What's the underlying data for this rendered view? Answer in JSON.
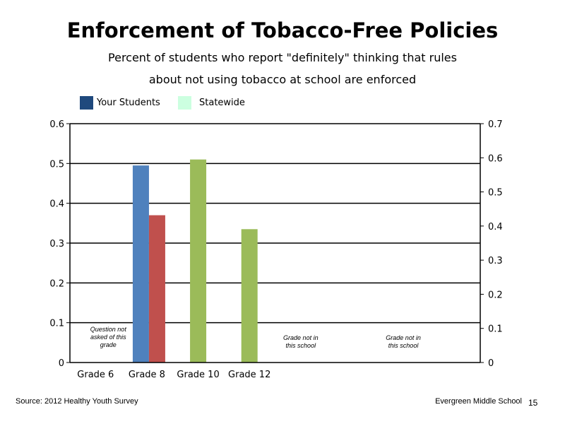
{
  "chart_data": {
    "type": "bar",
    "title": "Enforcement of Tobacco-Free Policies",
    "subtitle_lines": [
      "Percent of students who report \"definitely\" thinking that rules",
      "about not using tobacco at school are enforced"
    ],
    "categories": [
      "Grade 6",
      "Grade 8",
      "Grade 10",
      "Grade 12"
    ],
    "series": [
      {
        "name": "Your Students",
        "values": [
          null,
          0.495,
          null,
          null
        ],
        "color": "#4f81bd"
      },
      {
        "name": "",
        "values": [
          null,
          0.37,
          null,
          null
        ],
        "color": "#c0504d"
      },
      {
        "name": "",
        "values": [
          null,
          null,
          0.51,
          0.335
        ],
        "color": "#9bbb59"
      }
    ],
    "legend": [
      {
        "name": "Your Students",
        "color": "#1f497d"
      },
      {
        "name": "Statewide",
        "color": "#ccffe0"
      }
    ],
    "y_left": {
      "min": 0,
      "max": 0.6,
      "ticks": [
        "0",
        "0.1",
        "0.2",
        "0.3",
        "0.4",
        "0.5",
        "0.6"
      ]
    },
    "y_right": {
      "min": 0,
      "max": 0.7,
      "ticks": [
        "0",
        "0.1",
        "0.2",
        "0.3",
        "0.4",
        "0.5",
        "0.6",
        "0.7"
      ]
    },
    "grid": true,
    "annotations": [
      {
        "category_index": 0,
        "lines": [
          "Question not",
          "asked of this",
          "grade"
        ]
      },
      {
        "category_index": 4,
        "lines": [
          "Grade not in",
          "this school"
        ]
      },
      {
        "category_index": 6,
        "lines": [
          "Grade not in",
          "this school"
        ]
      }
    ]
  },
  "footer": {
    "source": "Source: 2012 Healthy Youth Survey",
    "school": "Evergreen Middle School",
    "page_number": "15"
  }
}
